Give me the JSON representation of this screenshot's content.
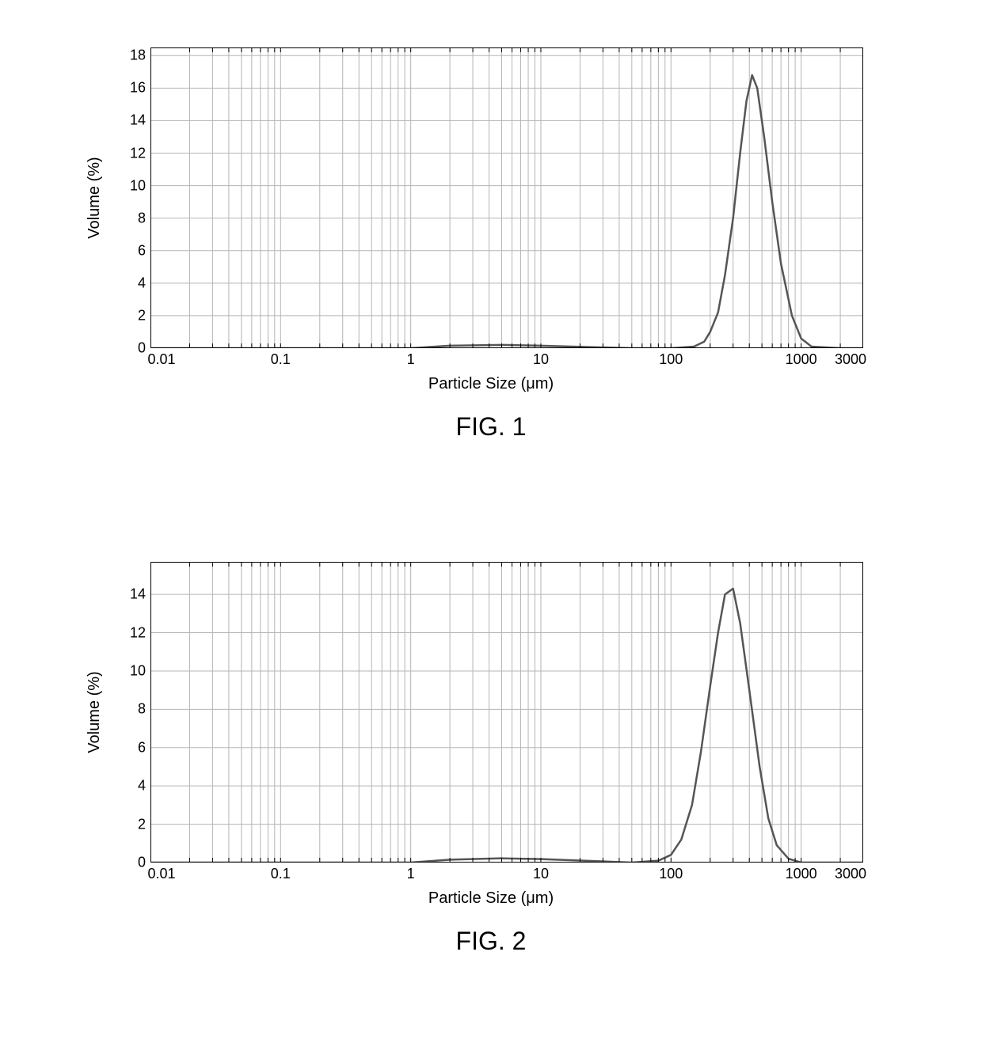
{
  "charts": [
    {
      "id": "fig1",
      "type": "line",
      "caption": "FIG. 1",
      "xlabel": "Particle Size (μm)",
      "ylabel": "Volume (%)",
      "x_scale": "log",
      "xlim": [
        0.01,
        3000
      ],
      "ylim": [
        0,
        18.5
      ],
      "ytick_step": 2,
      "yticks": [
        0,
        2,
        4,
        6,
        8,
        10,
        12,
        14,
        16,
        18
      ],
      "xticks": [
        0.01,
        0.1,
        1,
        10,
        100,
        1000,
        3000
      ],
      "xtick_labels": [
        "0.01",
        "0.1",
        "1",
        "10",
        "100",
        "1000",
        "3000"
      ],
      "line_color": "#555555",
      "line_width": 2.5,
      "grid_color": "#b5b5b5",
      "grid_width": 1,
      "border_color": "#000000",
      "border_width": 2,
      "background_color": "#ffffff",
      "label_fontsize": 20,
      "tick_fontsize": 18,
      "caption_fontsize": 32,
      "series": {
        "x": [
          0.01,
          0.1,
          1,
          2,
          5,
          10,
          50,
          100,
          150,
          180,
          200,
          230,
          260,
          300,
          340,
          380,
          420,
          460,
          520,
          600,
          700,
          850,
          1000,
          1200,
          2000,
          3000
        ],
        "y": [
          0,
          0,
          0,
          0.15,
          0.2,
          0.15,
          0,
          0,
          0.1,
          0.4,
          1.0,
          2.2,
          4.5,
          8.0,
          12.0,
          15.2,
          16.8,
          16.0,
          13.0,
          9.0,
          5.2,
          2.0,
          0.6,
          0.1,
          0,
          0
        ]
      }
    },
    {
      "id": "fig2",
      "type": "line",
      "caption": "FIG. 2",
      "xlabel": "Particle Size (μm)",
      "ylabel": "Volume (%)",
      "x_scale": "log",
      "xlim": [
        0.01,
        3000
      ],
      "ylim": [
        0,
        15.7
      ],
      "ytick_step": 2,
      "yticks": [
        0,
        2,
        4,
        6,
        8,
        10,
        12,
        14
      ],
      "xticks": [
        0.01,
        0.1,
        1,
        10,
        100,
        1000,
        3000
      ],
      "xtick_labels": [
        "0.01",
        "0.1",
        "1",
        "10",
        "100",
        "1000",
        "3000"
      ],
      "line_color": "#555555",
      "line_width": 2.5,
      "grid_color": "#b5b5b5",
      "grid_width": 1,
      "border_color": "#000000",
      "border_width": 2,
      "background_color": "#ffffff",
      "label_fontsize": 20,
      "tick_fontsize": 18,
      "caption_fontsize": 32,
      "series": {
        "x": [
          0.01,
          0.1,
          1,
          2,
          5,
          10,
          50,
          80,
          100,
          120,
          145,
          170,
          200,
          230,
          260,
          300,
          340,
          400,
          480,
          560,
          650,
          800,
          1000,
          2000,
          3000
        ],
        "y": [
          0,
          0,
          0,
          0.15,
          0.22,
          0.18,
          0,
          0.1,
          0.4,
          1.2,
          3.0,
          5.8,
          9.2,
          12.0,
          14.0,
          14.3,
          12.5,
          9.0,
          5.0,
          2.3,
          0.9,
          0.2,
          0,
          0,
          0
        ]
      }
    }
  ]
}
